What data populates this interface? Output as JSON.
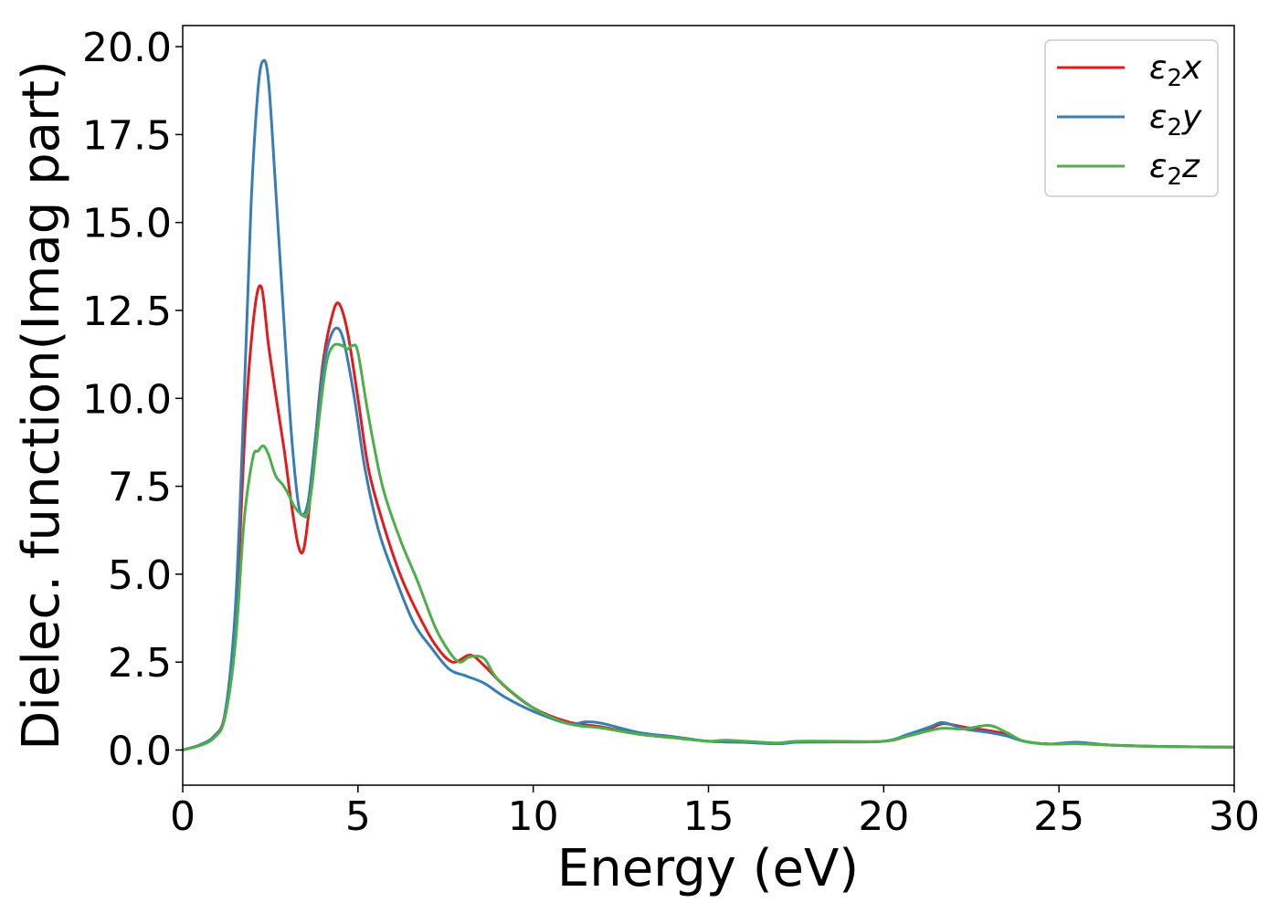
{
  "chart_data": {
    "type": "line",
    "xlabel": "Energy (eV)",
    "ylabel": "Dielec. function(Imag part)",
    "xlim": [
      0,
      30
    ],
    "ylim": [
      -1.0,
      20.6
    ],
    "xticks": [
      0,
      5,
      10,
      15,
      20,
      25,
      30
    ],
    "xtick_labels": [
      "0",
      "5",
      "10",
      "15",
      "20",
      "25",
      "30"
    ],
    "yticks": [
      0.0,
      2.5,
      5.0,
      7.5,
      10.0,
      12.5,
      15.0,
      17.5,
      20.0
    ],
    "ytick_labels": [
      "0.0",
      "2.5",
      "5.0",
      "7.5",
      "10.0",
      "12.5",
      "15.0",
      "17.5",
      "20.0"
    ],
    "grid": false,
    "legend_position": "top-right",
    "series": [
      {
        "name": "ε₂x",
        "legend_main": "ε",
        "legend_sub": "2",
        "legend_var": "x",
        "color": "#e41a1c",
        "points": [
          [
            0,
            0
          ],
          [
            0.5,
            0.15
          ],
          [
            0.9,
            0.4
          ],
          [
            1.2,
            1.0
          ],
          [
            1.5,
            3.5
          ],
          [
            1.8,
            9.5
          ],
          [
            2.05,
            12.5
          ],
          [
            2.25,
            13.15
          ],
          [
            2.45,
            11.5
          ],
          [
            2.7,
            9.8
          ],
          [
            2.9,
            8.5
          ],
          [
            3.1,
            7.0
          ],
          [
            3.3,
            5.8
          ],
          [
            3.45,
            5.7
          ],
          [
            3.6,
            6.8
          ],
          [
            3.8,
            9.0
          ],
          [
            4.0,
            11.0
          ],
          [
            4.25,
            12.3
          ],
          [
            4.45,
            12.7
          ],
          [
            4.7,
            11.9
          ],
          [
            5.0,
            10.0
          ],
          [
            5.3,
            8.0
          ],
          [
            5.7,
            6.5
          ],
          [
            6.2,
            5.0
          ],
          [
            6.7,
            3.9
          ],
          [
            7.2,
            3.0
          ],
          [
            7.7,
            2.5
          ],
          [
            8.2,
            2.7
          ],
          [
            8.6,
            2.4
          ],
          [
            9.2,
            1.8
          ],
          [
            10.0,
            1.2
          ],
          [
            11.0,
            0.8
          ],
          [
            12.0,
            0.65
          ],
          [
            13.0,
            0.45
          ],
          [
            14.0,
            0.35
          ],
          [
            15.0,
            0.25
          ],
          [
            16.0,
            0.22
          ],
          [
            17.0,
            0.18
          ],
          [
            17.5,
            0.23
          ],
          [
            18.5,
            0.23
          ],
          [
            20.0,
            0.25
          ],
          [
            20.7,
            0.4
          ],
          [
            21.3,
            0.6
          ],
          [
            21.7,
            0.75
          ],
          [
            22.3,
            0.65
          ],
          [
            23.0,
            0.55
          ],
          [
            23.5,
            0.45
          ],
          [
            24.0,
            0.25
          ],
          [
            24.7,
            0.17
          ],
          [
            25.5,
            0.18
          ],
          [
            26.5,
            0.14
          ],
          [
            28.0,
            0.1
          ],
          [
            30.0,
            0.08
          ]
        ]
      },
      {
        "name": "ε₂y",
        "legend_main": "ε",
        "legend_sub": "2",
        "legend_var": "y",
        "color": "#377eb8",
        "points": [
          [
            0,
            0
          ],
          [
            0.5,
            0.15
          ],
          [
            0.9,
            0.4
          ],
          [
            1.2,
            1.0
          ],
          [
            1.5,
            4.0
          ],
          [
            1.75,
            10.0
          ],
          [
            1.95,
            15.5
          ],
          [
            2.15,
            18.8
          ],
          [
            2.3,
            19.6
          ],
          [
            2.45,
            19.0
          ],
          [
            2.65,
            16.0
          ],
          [
            2.9,
            12.0
          ],
          [
            3.1,
            9.0
          ],
          [
            3.3,
            7.0
          ],
          [
            3.45,
            6.7
          ],
          [
            3.6,
            7.2
          ],
          [
            3.8,
            9.0
          ],
          [
            4.0,
            10.8
          ],
          [
            4.2,
            11.7
          ],
          [
            4.4,
            12.0
          ],
          [
            4.6,
            11.6
          ],
          [
            4.9,
            10.0
          ],
          [
            5.2,
            8.0
          ],
          [
            5.6,
            6.2
          ],
          [
            6.1,
            4.8
          ],
          [
            6.6,
            3.6
          ],
          [
            7.1,
            2.9
          ],
          [
            7.6,
            2.3
          ],
          [
            8.1,
            2.1
          ],
          [
            8.6,
            1.9
          ],
          [
            9.2,
            1.5
          ],
          [
            10.0,
            1.1
          ],
          [
            11.0,
            0.75
          ],
          [
            11.5,
            0.8
          ],
          [
            12.0,
            0.75
          ],
          [
            13.0,
            0.5
          ],
          [
            14.0,
            0.38
          ],
          [
            15.0,
            0.25
          ],
          [
            16.0,
            0.22
          ],
          [
            17.0,
            0.18
          ],
          [
            17.5,
            0.22
          ],
          [
            18.5,
            0.23
          ],
          [
            20.0,
            0.25
          ],
          [
            20.7,
            0.45
          ],
          [
            21.3,
            0.65
          ],
          [
            21.7,
            0.78
          ],
          [
            22.3,
            0.6
          ],
          [
            23.0,
            0.5
          ],
          [
            23.5,
            0.4
          ],
          [
            24.0,
            0.25
          ],
          [
            24.7,
            0.17
          ],
          [
            25.5,
            0.22
          ],
          [
            26.5,
            0.14
          ],
          [
            28.0,
            0.1
          ],
          [
            30.0,
            0.08
          ]
        ]
      },
      {
        "name": "ε₂z",
        "legend_main": "ε",
        "legend_sub": "2",
        "legend_var": "z",
        "color": "#4daf4a",
        "points": [
          [
            0,
            0
          ],
          [
            0.5,
            0.13
          ],
          [
            0.9,
            0.35
          ],
          [
            1.2,
            0.9
          ],
          [
            1.5,
            3.0
          ],
          [
            1.75,
            6.5
          ],
          [
            2.0,
            8.3
          ],
          [
            2.15,
            8.5
          ],
          [
            2.3,
            8.65
          ],
          [
            2.45,
            8.4
          ],
          [
            2.65,
            7.8
          ],
          [
            2.85,
            7.55
          ],
          [
            3.0,
            7.3
          ],
          [
            3.2,
            6.9
          ],
          [
            3.4,
            6.7
          ],
          [
            3.55,
            6.7
          ],
          [
            3.7,
            7.6
          ],
          [
            3.9,
            9.5
          ],
          [
            4.1,
            11.0
          ],
          [
            4.3,
            11.5
          ],
          [
            4.55,
            11.5
          ],
          [
            4.7,
            11.4
          ],
          [
            4.85,
            11.5
          ],
          [
            5.0,
            11.3
          ],
          [
            5.3,
            9.5
          ],
          [
            5.7,
            7.5
          ],
          [
            6.2,
            6.0
          ],
          [
            6.7,
            4.8
          ],
          [
            7.2,
            3.5
          ],
          [
            7.6,
            2.8
          ],
          [
            7.9,
            2.5
          ],
          [
            8.2,
            2.65
          ],
          [
            8.6,
            2.6
          ],
          [
            9.0,
            2.0
          ],
          [
            10.0,
            1.2
          ],
          [
            11.0,
            0.75
          ],
          [
            12.0,
            0.62
          ],
          [
            13.0,
            0.45
          ],
          [
            14.0,
            0.35
          ],
          [
            15.0,
            0.25
          ],
          [
            15.5,
            0.28
          ],
          [
            16.5,
            0.22
          ],
          [
            17.0,
            0.2
          ],
          [
            17.5,
            0.25
          ],
          [
            18.5,
            0.25
          ],
          [
            20.0,
            0.25
          ],
          [
            20.7,
            0.4
          ],
          [
            21.3,
            0.55
          ],
          [
            21.7,
            0.62
          ],
          [
            22.3,
            0.6
          ],
          [
            23.0,
            0.7
          ],
          [
            23.5,
            0.5
          ],
          [
            24.0,
            0.25
          ],
          [
            24.7,
            0.17
          ],
          [
            25.5,
            0.18
          ],
          [
            26.5,
            0.14
          ],
          [
            28.0,
            0.1
          ],
          [
            30.0,
            0.08
          ]
        ]
      }
    ]
  }
}
